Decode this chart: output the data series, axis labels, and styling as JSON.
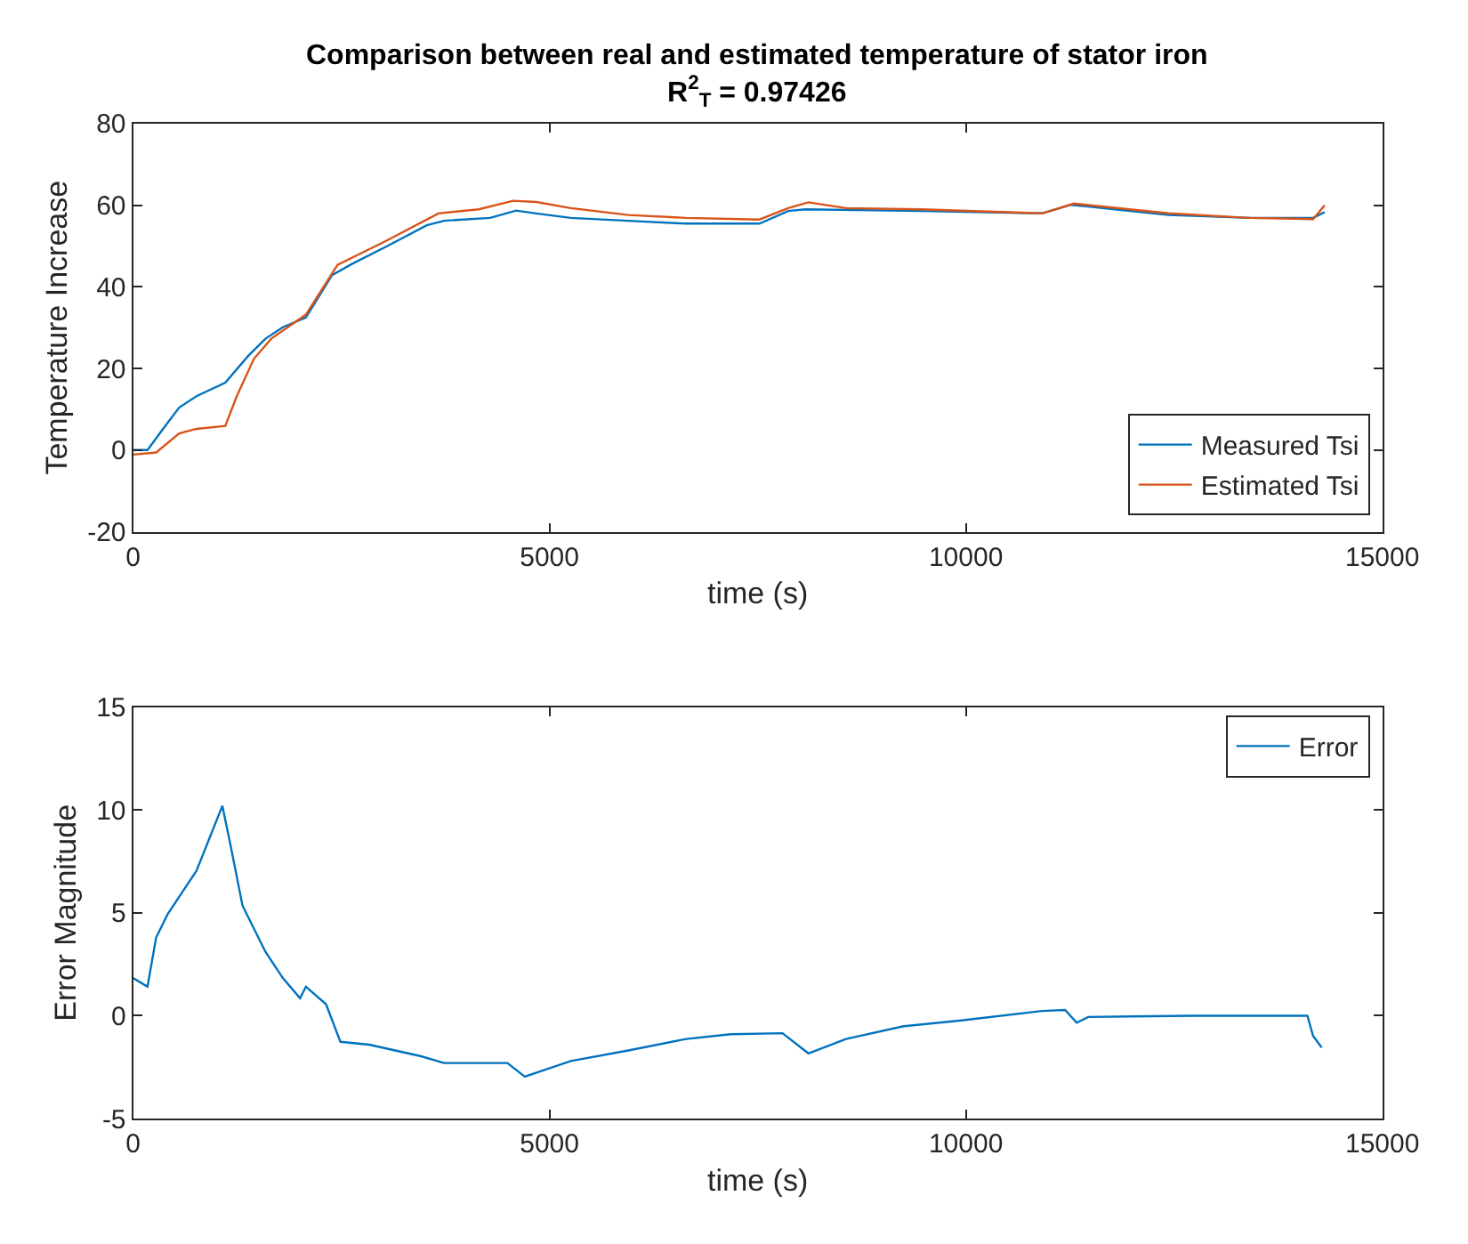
{
  "chart_data": [
    {
      "type": "line",
      "title": "Comparison between real and estimated temperature of stator iron",
      "subtitle": "R$^{2}$$_{T}$ = 0.97426",
      "xlabel": "time (s)",
      "ylabel": "Temperature Increase",
      "xlim": [
        0,
        15000
      ],
      "xticks": [
        0,
        5000,
        10000,
        15000
      ],
      "ylim": [
        -20,
        80
      ],
      "yticks": [
        -20,
        0,
        20,
        40,
        60,
        80
      ],
      "grid": false,
      "legend": "bottom right",
      "series": [
        {
          "name": "Measured Tsi",
          "color": "#0072bd",
          "x": [
            0,
            173,
            346,
            553,
            761,
            1107,
            1383,
            1590,
            1798,
            2075,
            2386,
            2628,
            3043,
            3527,
            3734,
            4288,
            4599,
            4841,
            5256,
            5947,
            6639,
            7175,
            7521,
            7867,
            8075,
            9460,
            10914,
            11260,
            11468,
            12438,
            13407,
            14169,
            14307
          ],
          "values": [
            0,
            0,
            4.8,
            10.4,
            13.2,
            16.5,
            23.1,
            27.3,
            30.1,
            32.5,
            42.8,
            45.6,
            49.9,
            55.1,
            56.2,
            56.9,
            58.7,
            58.0,
            56.9,
            56.2,
            55.5,
            55.5,
            55.5,
            58.6,
            59.0,
            58.6,
            58.0,
            60.1,
            59.7,
            57.6,
            56.9,
            56.9,
            58.3
          ]
        },
        {
          "name": "Estimated Tsi",
          "color": "#d95319",
          "x": [
            0,
            277,
            553,
            761,
            1107,
            1245,
            1452,
            1659,
            2075,
            2455,
            3043,
            3665,
            4149,
            4564,
            4841,
            5256,
            5947,
            6639,
            7521,
            7867,
            8109,
            8560,
            9460,
            10914,
            11295,
            12438,
            13407,
            14169,
            14307
          ],
          "values": [
            -1.1,
            -0.6,
            4.1,
            5.2,
            5.9,
            13.2,
            22.4,
            27.3,
            33.2,
            45.4,
            51.3,
            58.0,
            59.0,
            61.1,
            60.8,
            59.3,
            57.6,
            56.9,
            56.5,
            59.3,
            60.7,
            59.3,
            59.0,
            58.0,
            60.4,
            58.0,
            56.9,
            56.6,
            60.0
          ]
        }
      ]
    },
    {
      "type": "line",
      "xlabel": "time (s)",
      "ylabel": "Error Magnitude",
      "xlim": [
        0,
        15000
      ],
      "xticks": [
        0,
        5000,
        10000,
        15000
      ],
      "ylim": [
        -5,
        15
      ],
      "yticks": [
        -5,
        0,
        5,
        10,
        15
      ],
      "grid": false,
      "legend": "top right",
      "series": [
        {
          "name": "Error",
          "color": "#0072bd",
          "x": [
            0,
            173,
            277,
            415,
            622,
            761,
            1072,
            1176,
            1314,
            1590,
            1798,
            2005,
            2075,
            2317,
            2490,
            2836,
            3458,
            3734,
            4495,
            4703,
            5256,
            5947,
            6639,
            7175,
            7798,
            8109,
            8560,
            9252,
            9945,
            10914,
            11191,
            11330,
            11468,
            12715,
            14100,
            14169,
            14273
          ],
          "values": [
            1.83,
            1.41,
            3.8,
            4.93,
            6.2,
            7.04,
            10.2,
            8.17,
            5.35,
            3.1,
            1.83,
            0.85,
            1.41,
            0.56,
            -1.27,
            -1.41,
            -1.97,
            -2.3,
            -2.3,
            -2.96,
            -2.2,
            -1.69,
            -1.13,
            -0.9,
            -0.85,
            -1.83,
            -1.13,
            -0.51,
            -0.23,
            0.23,
            0.28,
            -0.34,
            -0.06,
            0,
            0,
            -0.99,
            -1.55
          ]
        }
      ]
    }
  ]
}
